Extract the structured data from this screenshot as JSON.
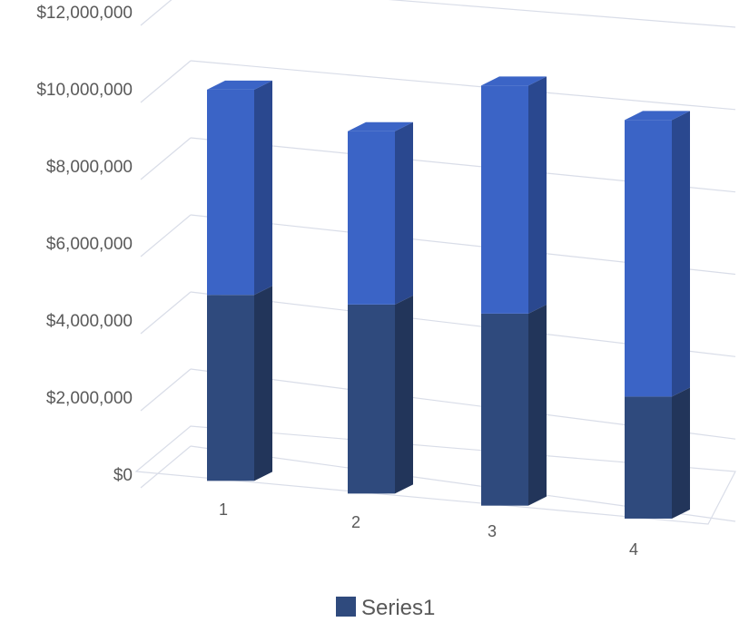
{
  "chart_data": {
    "type": "bar",
    "style": "3d-column",
    "categories": [
      "1",
      "2",
      "3",
      "4"
    ],
    "series": [
      {
        "name": "Series1",
        "values": [
          4800000,
          4800000,
          4800000,
          3000000
        ]
      },
      {
        "name": "",
        "values": [
          5300000,
          4400000,
          5700000,
          6800000
        ]
      }
    ],
    "y_tick_labels": [
      "$0",
      "$2,000,000",
      "$4,000,000",
      "$6,000,000",
      "$8,000,000",
      "$10,000,000",
      "$12,000,000"
    ],
    "ylim": [
      0,
      12000000
    ],
    "grid": true,
    "legend": {
      "position": "bottom",
      "entries": [
        "Series1"
      ]
    },
    "colors": {
      "bottom_series": "#2f4a7d",
      "top_series": "#3b64c6",
      "grid": "#d9dde8",
      "text": "#595959"
    }
  }
}
